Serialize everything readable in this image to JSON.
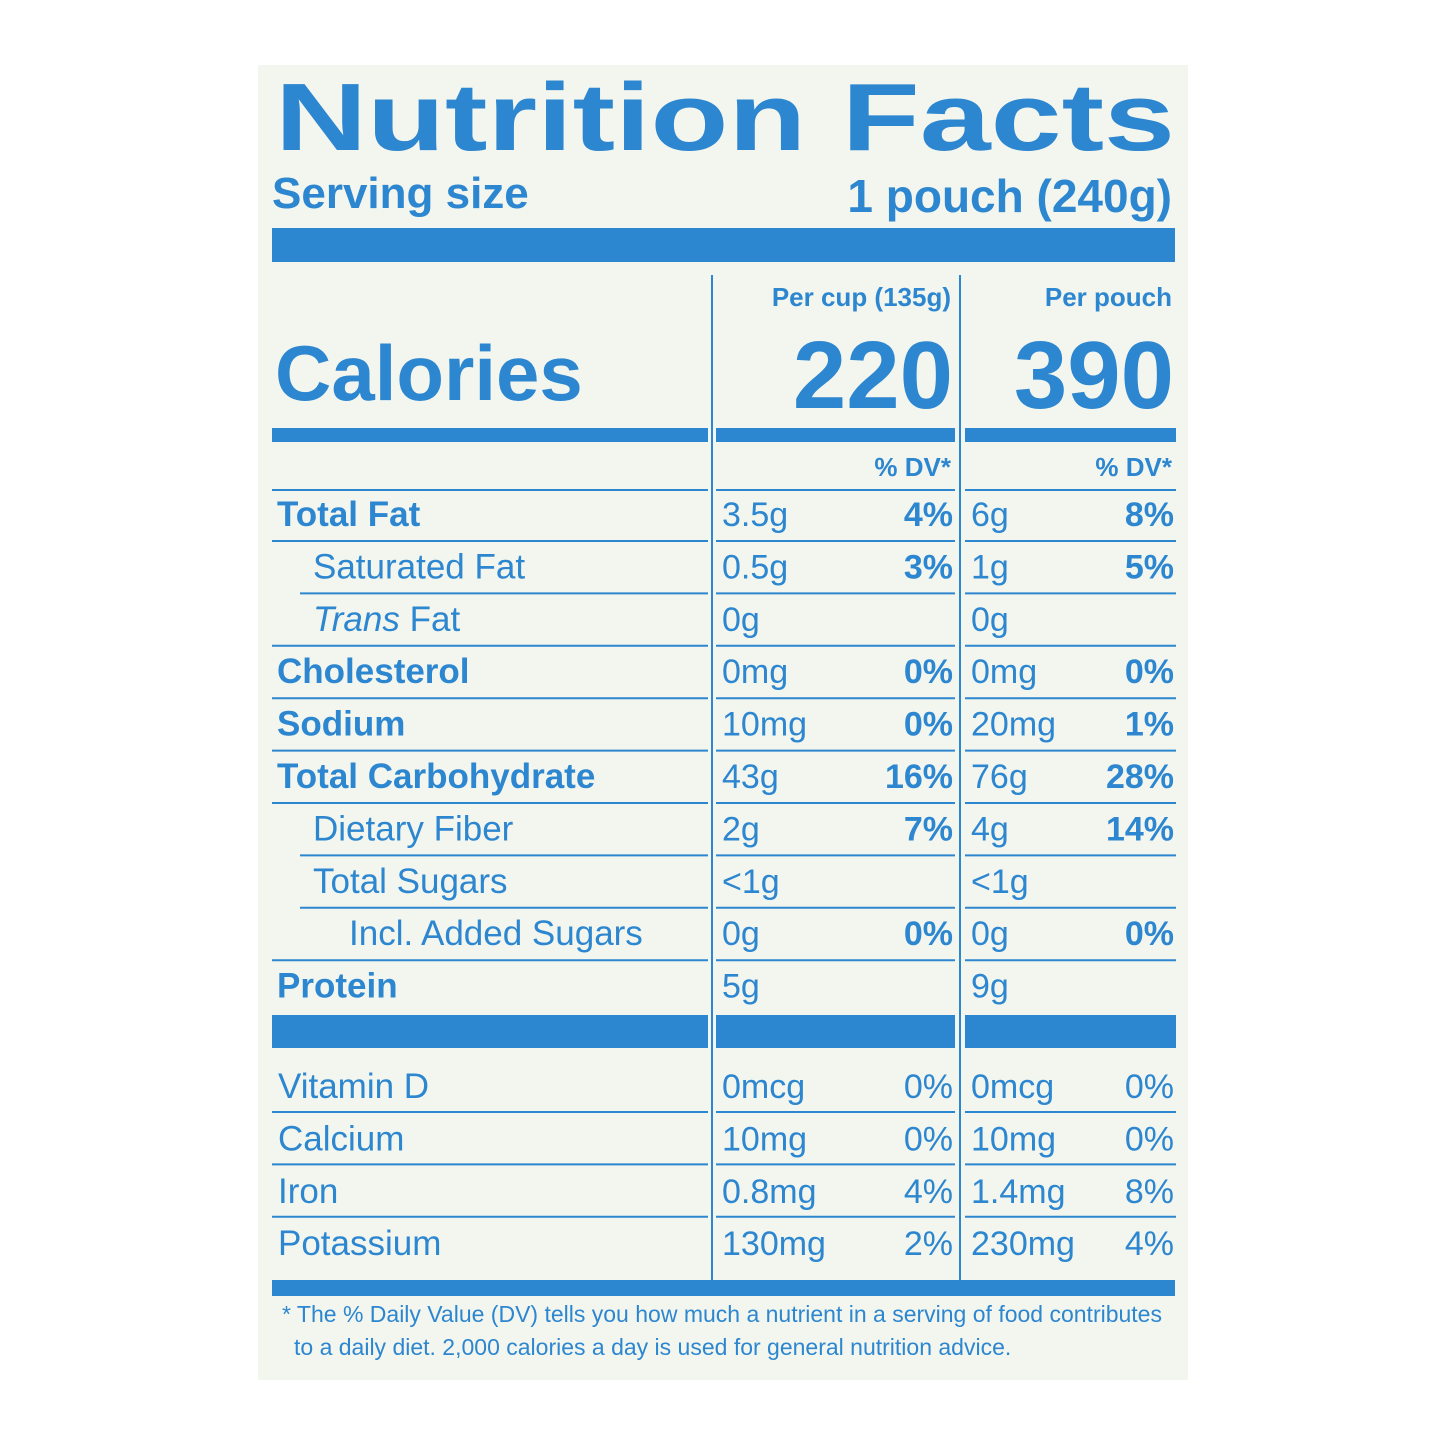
{
  "title": "Nutrition Facts",
  "serving": {
    "label": "Serving size",
    "value": "1 pouch (240g)"
  },
  "calories_label": "Calories",
  "columns": [
    {
      "header": "Per cup (135g)",
      "calories": "220",
      "dv_header": "% DV*"
    },
    {
      "header": "Per pouch",
      "calories": "390",
      "dv_header": "% DV*"
    }
  ],
  "nutrients": [
    {
      "name": "Total Fat",
      "bold": true,
      "indent": 0,
      "cells": [
        [
          "3.5g",
          "4%"
        ],
        [
          "6g",
          "8%"
        ]
      ]
    },
    {
      "name": "Saturated Fat",
      "bold": false,
      "indent": 1,
      "cells": [
        [
          "0.5g",
          "3%"
        ],
        [
          "1g",
          "5%"
        ]
      ]
    },
    {
      "italic": "Trans",
      "name": "Fat",
      "bold": false,
      "indent": 1,
      "cells": [
        [
          "0g"
        ],
        [
          "0g"
        ]
      ]
    },
    {
      "name": "Cholesterol",
      "bold": true,
      "indent": 0,
      "cells": [
        [
          "0mg",
          "0%"
        ],
        [
          "0mg",
          "0%"
        ]
      ]
    },
    {
      "name": "Sodium",
      "bold": true,
      "indent": 0,
      "cells": [
        [
          "10mg",
          "0%"
        ],
        [
          "20mg",
          "1%"
        ]
      ]
    },
    {
      "name": "Total Carbohydrate",
      "bold": true,
      "indent": 0,
      "cells": [
        [
          "43g",
          "16%"
        ],
        [
          "76g",
          "28%"
        ]
      ]
    },
    {
      "name": "Dietary Fiber",
      "bold": false,
      "indent": 1,
      "cells": [
        [
          "2g",
          "7%"
        ],
        [
          "4g",
          "14%"
        ]
      ]
    },
    {
      "name": "Total Sugars",
      "bold": false,
      "indent": 1,
      "cells": [
        [
          "<1g"
        ],
        [
          "<1g"
        ]
      ]
    },
    {
      "name": "Incl. Added Sugars",
      "bold": false,
      "indent": 2,
      "cells": [
        [
          "0g",
          "0%"
        ],
        [
          "0g",
          "0%"
        ]
      ]
    },
    {
      "name": "Protein",
      "bold": true,
      "indent": 0,
      "cells": [
        [
          "5g"
        ],
        [
          "9g"
        ]
      ]
    }
  ],
  "vitamins": [
    {
      "name": "Vitamin D",
      "cells": [
        [
          "0mcg",
          "0%"
        ],
        [
          "0mcg",
          "0%"
        ]
      ]
    },
    {
      "name": "Calcium",
      "cells": [
        [
          "10mg",
          "0%"
        ],
        [
          "10mg",
          "0%"
        ]
      ]
    },
    {
      "name": "Iron",
      "cells": [
        [
          "0.8mg",
          "4%"
        ],
        [
          "1.4mg",
          "8%"
        ]
      ]
    },
    {
      "name": "Potassium",
      "cells": [
        [
          "130mg",
          "2%"
        ],
        [
          "230mg",
          "4%"
        ]
      ]
    }
  ],
  "footnote": [
    "* The % Daily Value (DV) tells you how much a nutrient in a serving of food contributes",
    "to a daily diet. 2,000 calories a day is used for general nutrition advice."
  ]
}
